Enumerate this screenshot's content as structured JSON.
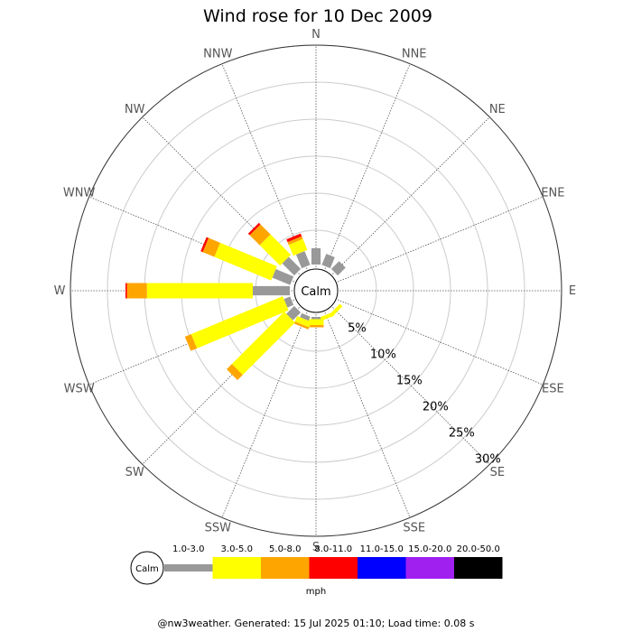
{
  "chart_data": {
    "type": "wind-rose",
    "title": "Wind rose for 10 Dec 2009",
    "directions": [
      "N",
      "NNE",
      "NE",
      "ENE",
      "E",
      "ESE",
      "SE",
      "SSE",
      "S",
      "SSW",
      "SW",
      "WSW",
      "W",
      "WNW",
      "NW",
      "NNW"
    ],
    "radial_tick_labels": [
      "5%",
      "10%",
      "15%",
      "20%",
      "25%",
      "30%"
    ],
    "radial_max_percent": 30,
    "calm_label": "Calm",
    "speed_bins": [
      {
        "label": "1.0-3.0",
        "color": "#999999"
      },
      {
        "label": "3.0-5.0",
        "color": "#ffff00"
      },
      {
        "label": "5.0-8.0",
        "color": "#ffa500"
      },
      {
        "label": "8.0-11.0",
        "color": "#ff0000"
      },
      {
        "label": "11.0-15.0",
        "color": "#0000ff"
      },
      {
        "label": "15.0-20.0",
        "color": "#a020f0"
      },
      {
        "label": "20.0-50.0",
        "color": "#000000"
      }
    ],
    "unit_label": "mph",
    "series": [
      {
        "direction": "N",
        "values": [
          2.2,
          0,
          0,
          0,
          0,
          0,
          0
        ]
      },
      {
        "direction": "NNE",
        "values": [
          1.6,
          0,
          0,
          0,
          0,
          0,
          0
        ]
      },
      {
        "direction": "NE",
        "values": [
          1.5,
          0,
          0,
          0,
          0,
          0,
          0
        ]
      },
      {
        "direction": "ENE",
        "values": [
          0,
          0,
          0,
          0,
          0,
          0,
          0
        ]
      },
      {
        "direction": "E",
        "values": [
          0,
          0,
          0,
          0,
          0,
          0,
          0
        ]
      },
      {
        "direction": "ESE",
        "values": [
          0,
          0,
          0,
          0,
          0,
          0,
          0
        ]
      },
      {
        "direction": "SE",
        "values": [
          0,
          0.5,
          0,
          0,
          0,
          0,
          0
        ]
      },
      {
        "direction": "SSE",
        "values": [
          0,
          0.5,
          0,
          0,
          0,
          0,
          0
        ]
      },
      {
        "direction": "S",
        "values": [
          0.3,
          0.8,
          0.3,
          0,
          0,
          0,
          0
        ]
      },
      {
        "direction": "SSW",
        "values": [
          0.6,
          0.8,
          0.3,
          0,
          0,
          0,
          0
        ]
      },
      {
        "direction": "SW",
        "values": [
          1.5,
          10.0,
          1.0,
          0,
          0,
          0,
          0
        ]
      },
      {
        "direction": "WSW",
        "values": [
          0.9,
          13.4,
          0.9,
          0,
          0,
          0,
          0
        ]
      },
      {
        "direction": "W",
        "values": [
          5.0,
          14.3,
          2.7,
          0.2,
          0,
          0,
          0
        ]
      },
      {
        "direction": "WNW",
        "values": [
          2.6,
          8.3,
          1.7,
          0.3,
          0,
          0,
          0
        ]
      },
      {
        "direction": "NW",
        "values": [
          2.3,
          3.9,
          1.9,
          0.3,
          0,
          0,
          0
        ]
      },
      {
        "direction": "NNW",
        "values": [
          2.0,
          1.6,
          0.4,
          0.4,
          0,
          0,
          0
        ]
      }
    ]
  },
  "footer": "@nw3weather. Generated: 15 Jul 2025 01:10; Load time: 0.08 s"
}
